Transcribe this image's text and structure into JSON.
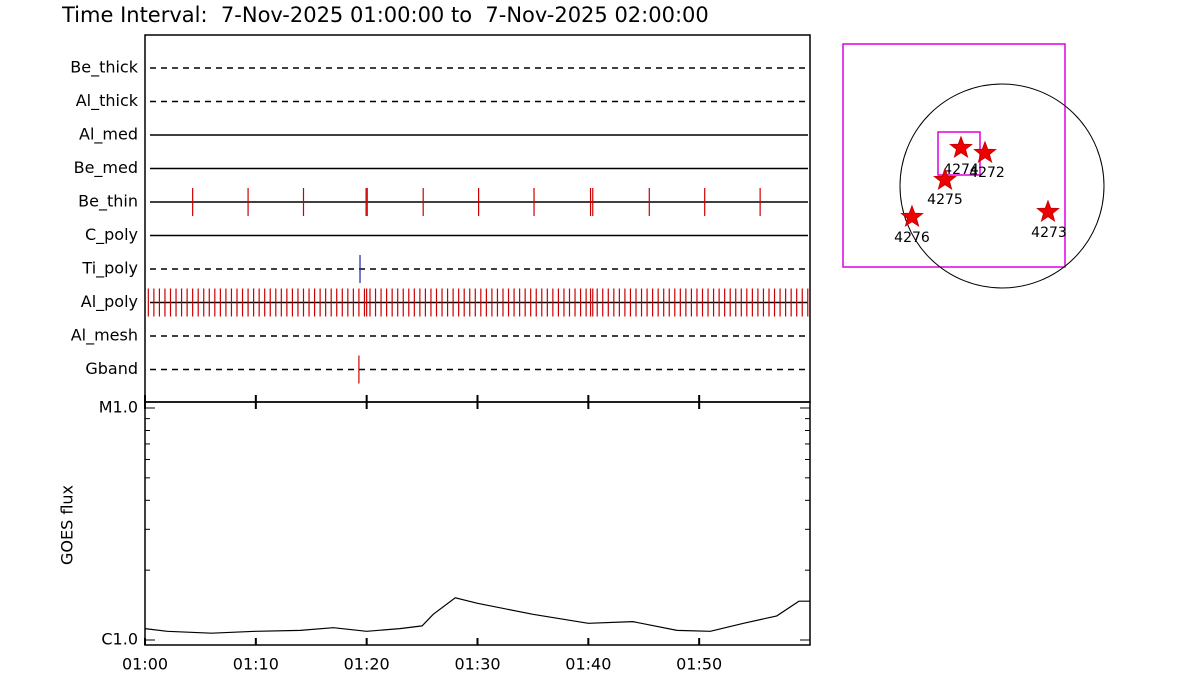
{
  "title": "Time Interval:  7-Nov-2025 01:00:00 to  7-Nov-2025 02:00:00",
  "chart_data": [
    {
      "type": "timeline",
      "rows": [
        {
          "name": "Be_thick",
          "style": "dashed",
          "color": "#cc0000",
          "events": []
        },
        {
          "name": "Al_thick",
          "style": "dashed",
          "color": "#cc0000",
          "events": []
        },
        {
          "name": "Al_med",
          "style": "solid",
          "color": "#cc0000",
          "events": []
        },
        {
          "name": "Be_med",
          "style": "solid",
          "color": "#cc0000",
          "events": []
        },
        {
          "name": "Be_thin",
          "style": "solid",
          "color": "#cc0000",
          "events": [
            4.3,
            9.3,
            14.3,
            19.95,
            20.05,
            25.1,
            30.1,
            35.1,
            40.2,
            40.4,
            45.5,
            50.5,
            55.5
          ]
        },
        {
          "name": "C_poly",
          "style": "solid",
          "color": "#cc0000",
          "events": []
        },
        {
          "name": "Ti_poly",
          "style": "dashed",
          "color": "#2020aa",
          "events": [
            19.4
          ]
        },
        {
          "name": "Al_poly",
          "style": "solid",
          "color": "#cc0000",
          "events": [
            0.3,
            0.8,
            1.3,
            1.8,
            2.3,
            2.8,
            3.3,
            3.8,
            4.3,
            4.8,
            5.3,
            5.8,
            6.3,
            6.8,
            7.3,
            7.8,
            8.3,
            8.8,
            9.3,
            9.8,
            10.3,
            10.8,
            11.3,
            11.8,
            12.3,
            12.8,
            13.3,
            13.8,
            14.3,
            14.8,
            15.3,
            15.8,
            16.3,
            16.8,
            17.3,
            17.8,
            18.3,
            18.8,
            19.3,
            19.8,
            20.0,
            20.3,
            20.8,
            21.3,
            21.8,
            22.3,
            22.8,
            23.3,
            23.8,
            24.3,
            24.8,
            25.3,
            25.8,
            26.3,
            26.8,
            27.3,
            27.8,
            28.3,
            28.8,
            29.3,
            29.8,
            30.3,
            30.8,
            31.3,
            31.8,
            32.3,
            32.8,
            33.3,
            33.8,
            34.3,
            34.8,
            35.3,
            35.8,
            36.3,
            36.8,
            37.3,
            37.8,
            38.3,
            38.8,
            39.3,
            39.8,
            40.2,
            40.4,
            40.8,
            41.3,
            41.8,
            42.3,
            42.8,
            43.3,
            43.8,
            44.3,
            44.8,
            45.3,
            45.8,
            46.3,
            46.8,
            47.3,
            47.8,
            48.3,
            48.8,
            49.3,
            49.8,
            50.3,
            50.8,
            51.3,
            51.8,
            52.3,
            52.8,
            53.3,
            53.8,
            54.3,
            54.8,
            55.3,
            55.8,
            56.3,
            56.8,
            57.3,
            57.8,
            58.3,
            58.8,
            59.3,
            59.8
          ]
        },
        {
          "name": "Al_mesh",
          "style": "dashed",
          "color": "#cc0000",
          "events": []
        },
        {
          "name": "Gband",
          "style": "dashed",
          "color": "#cc0000",
          "events": [
            19.3
          ]
        }
      ]
    },
    {
      "type": "line",
      "ylabel": "GOES flux",
      "color": "#000000",
      "log": true,
      "x": [
        0,
        2,
        6,
        10,
        14,
        17,
        20,
        23,
        25,
        26,
        28,
        30,
        35,
        40,
        44,
        48,
        51,
        54,
        57,
        59,
        60
      ],
      "values": [
        1.12e-06,
        1.09e-06,
        1.07e-06,
        1.09e-06,
        1.1e-06,
        1.13e-06,
        1.09e-06,
        1.12e-06,
        1.15e-06,
        1.29e-06,
        1.52e-06,
        1.44e-06,
        1.29e-06,
        1.18e-06,
        1.2e-06,
        1.1e-06,
        1.09e-06,
        1.18e-06,
        1.27e-06,
        1.47e-06,
        1.47e-06
      ],
      "xlim": [
        0,
        60
      ],
      "xticks": [
        {
          "value": 0,
          "label": "01:00"
        },
        {
          "value": 10,
          "label": "01:10"
        },
        {
          "value": 20,
          "label": "01:20"
        },
        {
          "value": 30,
          "label": "01:30"
        },
        {
          "value": 40,
          "label": "01:40"
        },
        {
          "value": 50,
          "label": "01:50"
        }
      ],
      "ylim": [
        1e-06,
        1e-05
      ],
      "yticks": [
        {
          "value": 1e-06,
          "label": "C1.0"
        },
        {
          "value": 1e-05,
          "label": "M1.0"
        }
      ]
    }
  ],
  "map": {
    "regions": [
      {
        "label": "4274"
      },
      {
        "label": "4272"
      },
      {
        "label": "4275"
      },
      {
        "label": "4276"
      },
      {
        "label": "4273"
      }
    ]
  }
}
